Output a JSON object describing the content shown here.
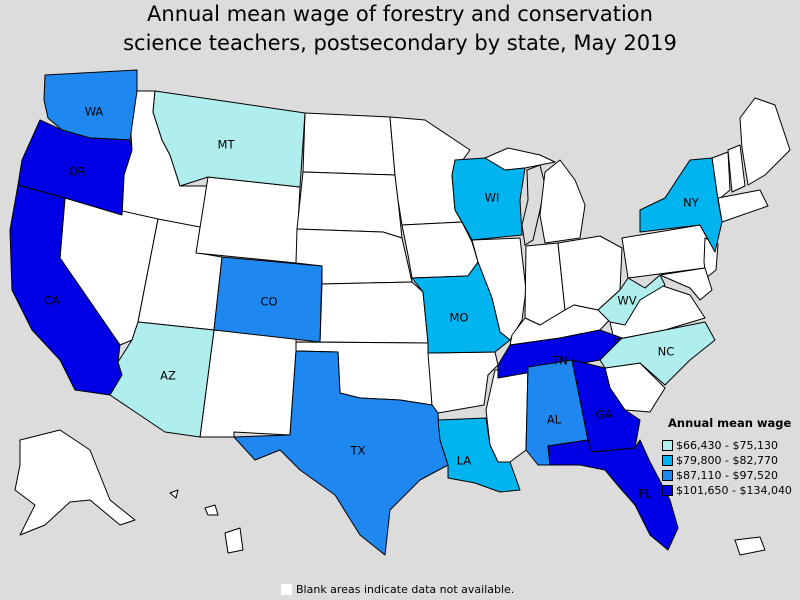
{
  "title": {
    "line1": "Annual mean wage of forestry and conservation",
    "line2": "science teachers, postsecondary by state, May 2019"
  },
  "colors": {
    "background": "#dcdcdc",
    "no_data": "#ffffff",
    "tier1": "#b0eeee",
    "tier2": "#00b4f0",
    "tier3": "#1e88f0",
    "tier4": "#0000e6"
  },
  "legend": {
    "title": "Annual mean wage",
    "items": [
      {
        "label": "$66,430 - $75,130",
        "color": "#b0eeee"
      },
      {
        "label": "$79,800 - $82,770",
        "color": "#00b4f0"
      },
      {
        "label": "$87,110 - $97,520",
        "color": "#1e88f0"
      },
      {
        "label": "$101,650 - $134,040",
        "color": "#0000e6"
      }
    ]
  },
  "footnote": "Blank areas indicate data not available.",
  "states": {
    "WA": {
      "label": "WA",
      "tier": 3
    },
    "OR": {
      "label": "OR",
      "tier": 4
    },
    "CA": {
      "label": "CA",
      "tier": 4
    },
    "MT": {
      "label": "MT",
      "tier": 1
    },
    "AZ": {
      "label": "AZ",
      "tier": 1
    },
    "CO": {
      "label": "CO",
      "tier": 3
    },
    "TX": {
      "label": "TX",
      "tier": 3
    },
    "MO": {
      "label": "MO",
      "tier": 2
    },
    "LA": {
      "label": "LA",
      "tier": 2
    },
    "WI": {
      "label": "WI",
      "tier": 2
    },
    "TN": {
      "label": "TN",
      "tier": 4
    },
    "AL": {
      "label": "AL",
      "tier": 3
    },
    "GA": {
      "label": "GA",
      "tier": 4
    },
    "FL": {
      "label": "FL",
      "tier": 4
    },
    "NC": {
      "label": "NC",
      "tier": 1
    },
    "WV": {
      "label": "WV",
      "tier": 1
    },
    "NY": {
      "label": "NY",
      "tier": 2
    }
  }
}
